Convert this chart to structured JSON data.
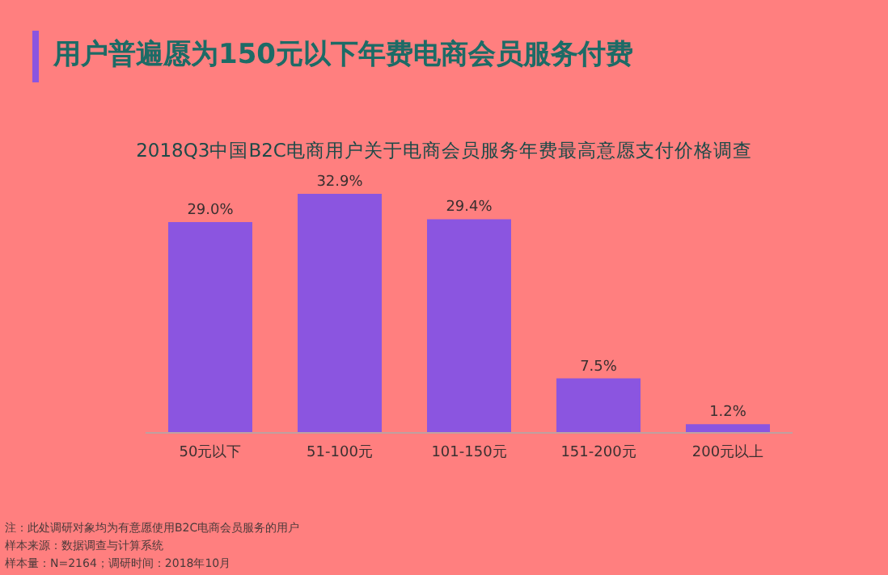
{
  "chart_data": {
    "type": "bar",
    "title": "用户普遍愿为150元以下年费电商会员服务付费",
    "subtitle": "2018Q3中国B2C电商用户关于电商会员服务年费最高意愿支付价格调查",
    "categories": [
      "50元以下",
      "51-100元",
      "101-150元",
      "151-200元",
      "200元以上"
    ],
    "values": [
      29.0,
      32.9,
      29.4,
      7.5,
      1.2
    ],
    "value_labels": [
      "29.0%",
      "32.9%",
      "29.4%",
      "7.5%",
      "1.2%"
    ],
    "color": "#8b55e0",
    "annotations": [
      "注：此处调研对象均为有意愿使用B2C电商会员服务的用户",
      "样本来源：数据调查与计算系统",
      "样本量：N=2164；调研时间：2018年10月"
    ]
  }
}
